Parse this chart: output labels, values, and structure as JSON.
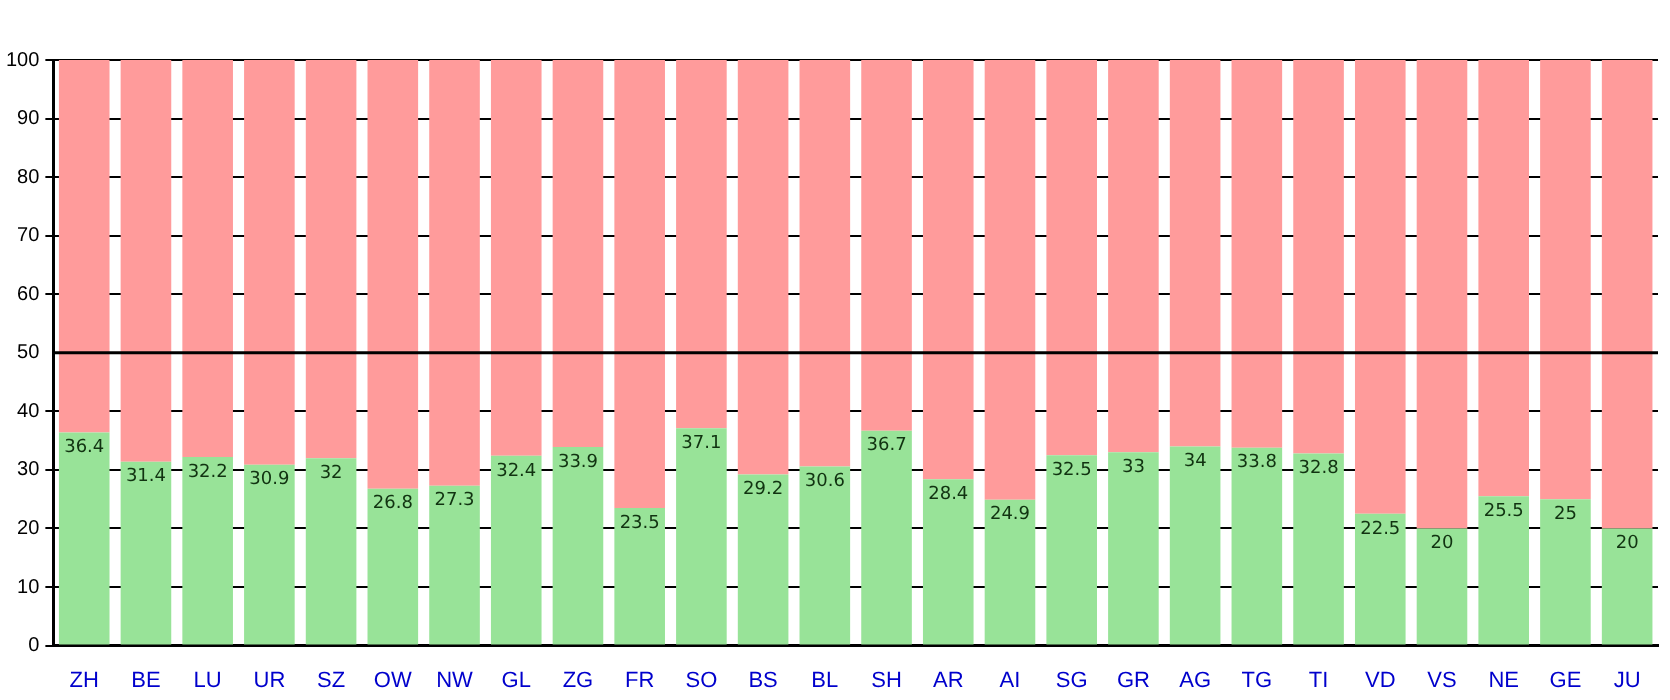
{
  "chart_data": {
    "type": "bar",
    "stacked": true,
    "categories": [
      "ZH",
      "BE",
      "LU",
      "UR",
      "SZ",
      "OW",
      "NW",
      "GL",
      "ZG",
      "FR",
      "SO",
      "BS",
      "BL",
      "SH",
      "AR",
      "AI",
      "SG",
      "GR",
      "AG",
      "TG",
      "TI",
      "VD",
      "VS",
      "NE",
      "GE",
      "JU"
    ],
    "series": [
      {
        "color": "#98e398",
        "values": [
          36.4,
          31.4,
          32.2,
          30.9,
          32,
          26.8,
          27.3,
          32.4,
          33.9,
          23.5,
          37.1,
          29.2,
          30.6,
          36.7,
          28.4,
          24.9,
          32.5,
          33,
          34,
          33.8,
          32.8,
          22.5,
          20,
          25.5,
          25,
          20
        ],
        "value_labels": [
          "36.4",
          "31.4",
          "32.2",
          "30.9",
          "32",
          "26.8",
          "27.3",
          "32.4",
          "33.9",
          "23.5",
          "37.1",
          "29.2",
          "30.6",
          "36.7",
          "28.4",
          "24.9",
          "32.5",
          "33",
          "34",
          "33.8",
          "32.8",
          "22.5",
          "20",
          "25.5",
          "25",
          "20"
        ]
      },
      {
        "color": "#ff9b9b",
        "values": [
          63.6,
          68.6,
          67.8,
          69.1,
          68,
          73.2,
          72.7,
          67.6,
          66.1,
          76.5,
          62.9,
          70.8,
          69.4,
          63.3,
          71.6,
          75.1,
          67.5,
          67,
          66,
          66.2,
          67.2,
          77.5,
          80,
          74.5,
          75,
          80
        ]
      }
    ],
    "ylim": [
      0,
      100
    ],
    "yticks": [
      0,
      10,
      20,
      30,
      40,
      50,
      60,
      70,
      80,
      90,
      100
    ],
    "grid": "y",
    "legend": false,
    "ref_lines": [
      {
        "axis": "y",
        "value": 50,
        "color": "#000000"
      }
    ]
  }
}
